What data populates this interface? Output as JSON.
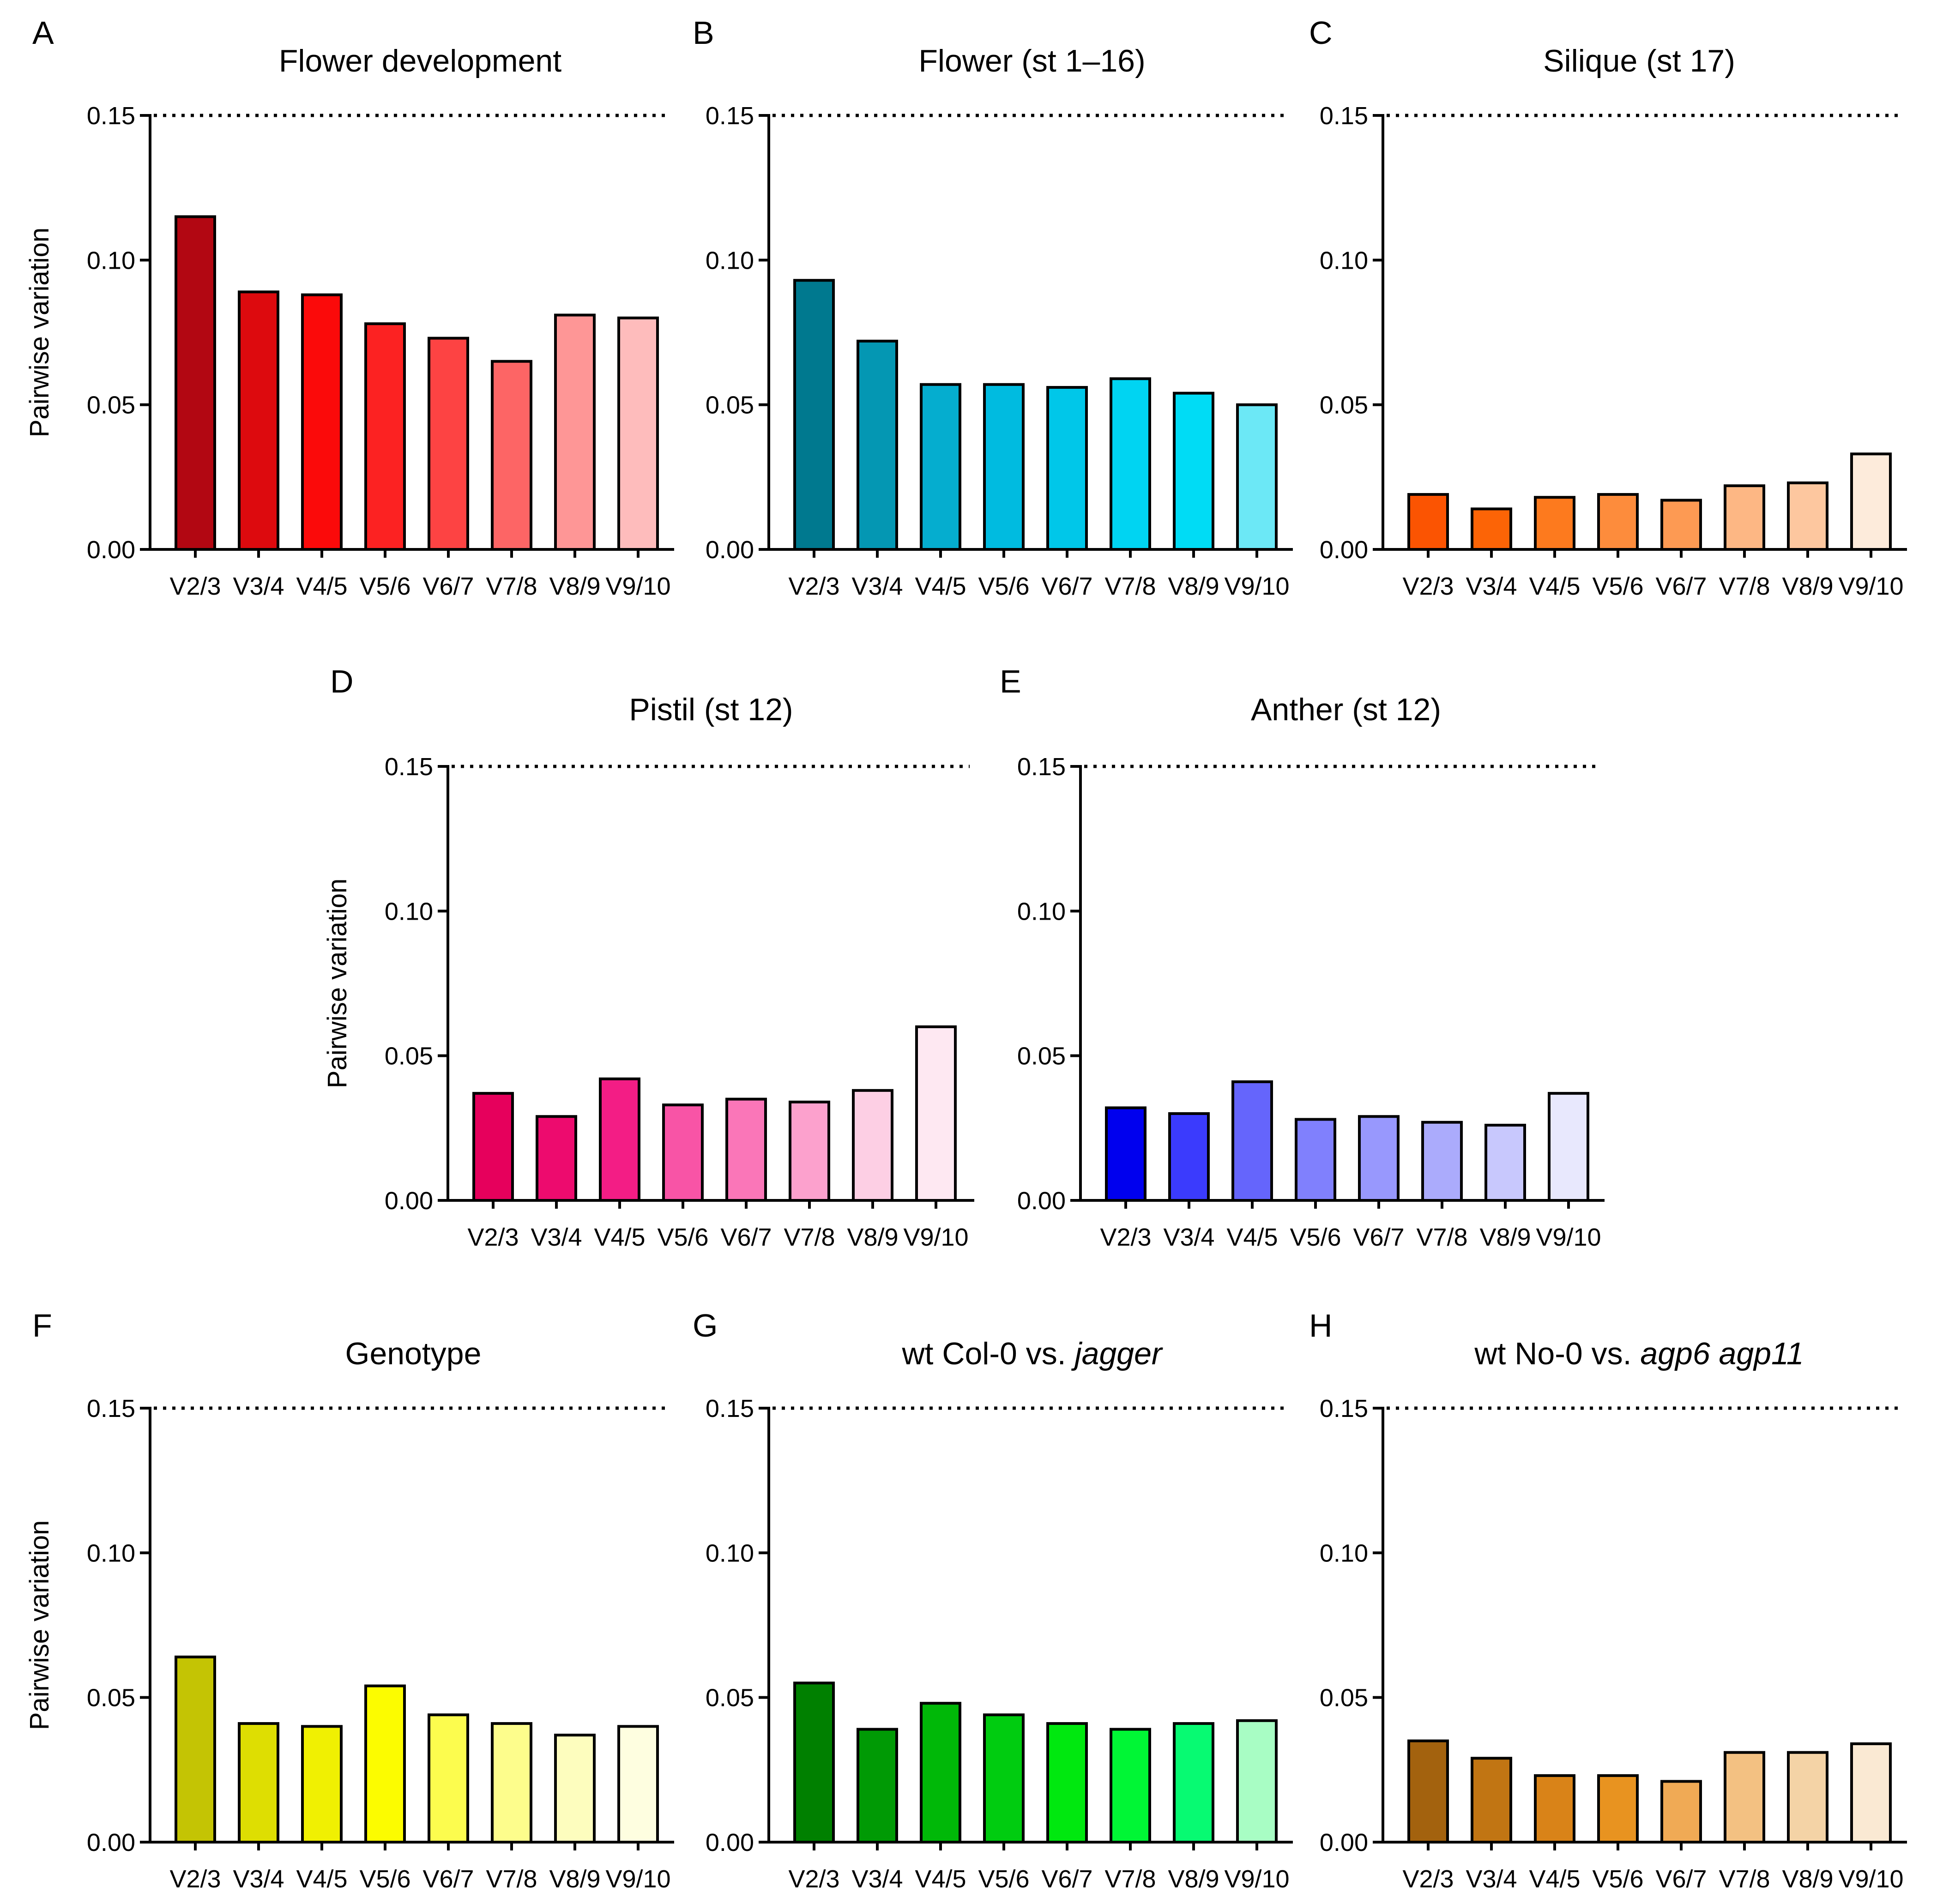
{
  "chart_data": [
    {
      "letter": "A",
      "title": "Flower development",
      "ylabel": "Pairwise variation",
      "type": "bar",
      "categories": [
        "V2/3",
        "V3/4",
        "V4/5",
        "V5/6",
        "V6/7",
        "V7/8",
        "V8/9",
        "V9/10"
      ],
      "values": [
        0.115,
        0.089,
        0.088,
        0.078,
        0.073,
        0.065,
        0.081,
        0.08
      ],
      "colors": [
        "#b20712",
        "#dd0a0e",
        "#fb0a0a",
        "#fc2222",
        "#fd4343",
        "#fd6565",
        "#fe9696",
        "#febcbc"
      ],
      "ylim": [
        0,
        0.15
      ],
      "yticks": [
        "0.00",
        "0.05",
        "0.10",
        "0.15"
      ],
      "threshold": 0.15
    },
    {
      "letter": "B",
      "title": "Flower (st 1–16)",
      "ylabel": "",
      "type": "bar",
      "categories": [
        "V2/3",
        "V3/4",
        "V4/5",
        "V5/6",
        "V6/7",
        "V7/8",
        "V8/9",
        "V9/10"
      ],
      "values": [
        0.093,
        0.072,
        0.057,
        0.057,
        0.056,
        0.059,
        0.054,
        0.05
      ],
      "colors": [
        "#00798f",
        "#0497b3",
        "#05adcf",
        "#00bbe0",
        "#00c7e9",
        "#00d4f2",
        "#00dcf5",
        "#6ce8f6"
      ],
      "ylim": [
        0,
        0.15
      ],
      "yticks": [
        "0.00",
        "0.05",
        "0.10",
        "0.15"
      ],
      "threshold": 0.15
    },
    {
      "letter": "C",
      "title": "Silique (st 17)",
      "ylabel": "",
      "type": "bar",
      "categories": [
        "V2/3",
        "V3/4",
        "V4/5",
        "V5/6",
        "V6/7",
        "V7/8",
        "V8/9",
        "V9/10"
      ],
      "values": [
        0.019,
        0.014,
        0.018,
        0.019,
        0.017,
        0.022,
        0.023,
        0.033
      ],
      "colors": [
        "#fb5402",
        "#fc6406",
        "#fd7a1e",
        "#fd8c3c",
        "#fd9a53",
        "#fdb784",
        "#fdc79f",
        "#fdebdb"
      ],
      "ylim": [
        0,
        0.15
      ],
      "yticks": [
        "0.00",
        "0.05",
        "0.10",
        "0.15"
      ],
      "threshold": 0.15
    },
    {
      "letter": "D",
      "title": "Pistil (st 12)",
      "ylabel": "Pairwise variation",
      "type": "bar",
      "categories": [
        "V2/3",
        "V3/4",
        "V4/5",
        "V5/6",
        "V6/7",
        "V7/8",
        "V8/9",
        "V9/10"
      ],
      "values": [
        0.037,
        0.029,
        0.042,
        0.033,
        0.035,
        0.034,
        0.038,
        0.06
      ],
      "colors": [
        "#e6005c",
        "#ed0b6e",
        "#f31d85",
        "#f854a6",
        "#fa76b8",
        "#fca1cd",
        "#fdcfe4",
        "#fee8f2"
      ],
      "ylim": [
        0,
        0.15
      ],
      "yticks": [
        "0.00",
        "0.05",
        "0.10",
        "0.15"
      ],
      "threshold": 0.15
    },
    {
      "letter": "E",
      "title": "Anther (st 12)",
      "ylabel": "",
      "type": "bar",
      "categories": [
        "V2/3",
        "V3/4",
        "V4/5",
        "V5/6",
        "V6/7",
        "V7/8",
        "V8/9",
        "V9/10"
      ],
      "values": [
        0.032,
        0.03,
        0.041,
        0.028,
        0.029,
        0.027,
        0.026,
        0.037
      ],
      "colors": [
        "#0000ee",
        "#3b3bfd",
        "#6565fc",
        "#8080fd",
        "#9898fd",
        "#ababfc",
        "#c8c8fd",
        "#e8e8fd"
      ],
      "ylim": [
        0,
        0.15
      ],
      "yticks": [
        "0.00",
        "0.05",
        "0.10",
        "0.15"
      ],
      "threshold": 0.15
    },
    {
      "letter": "F",
      "title": "Genotype",
      "ylabel": "Pairwise variation",
      "type": "bar",
      "categories": [
        "V2/3",
        "V3/4",
        "V4/5",
        "V5/6",
        "V6/7",
        "V7/8",
        "V8/9",
        "V9/10"
      ],
      "values": [
        0.064,
        0.041,
        0.04,
        0.054,
        0.044,
        0.041,
        0.037,
        0.04
      ],
      "colors": [
        "#c4c404",
        "#dede02",
        "#f0f002",
        "#fcfc00",
        "#fcfc4e",
        "#fdfd8c",
        "#fdfdbe",
        "#fefee0"
      ],
      "ylim": [
        0,
        0.15
      ],
      "yticks": [
        "0.00",
        "0.05",
        "0.10",
        "0.15"
      ],
      "threshold": 0.15
    },
    {
      "letter": "G",
      "title": "wt Col-0 vs. ",
      "title_italic": "jagger",
      "ylabel": "",
      "type": "bar",
      "categories": [
        "V2/3",
        "V3/4",
        "V4/5",
        "V5/6",
        "V6/7",
        "V7/8",
        "V8/9",
        "V9/10"
      ],
      "values": [
        0.055,
        0.039,
        0.048,
        0.044,
        0.041,
        0.039,
        0.041,
        0.042
      ],
      "colors": [
        "#008000",
        "#009a05",
        "#00b808",
        "#00cc10",
        "#00e80f",
        "#00f635",
        "#07fa72",
        "#a8fdc4"
      ],
      "ylim": [
        0,
        0.15
      ],
      "yticks": [
        "0.00",
        "0.05",
        "0.10",
        "0.15"
      ],
      "threshold": 0.15
    },
    {
      "letter": "H",
      "title": "wt No-0 vs. ",
      "title_italic": "agp6 agp11",
      "ylabel": "",
      "type": "bar",
      "categories": [
        "V2/3",
        "V3/4",
        "V4/5",
        "V5/6",
        "V6/7",
        "V7/8",
        "V8/9",
        "V9/10"
      ],
      "values": [
        0.035,
        0.029,
        0.023,
        0.023,
        0.021,
        0.031,
        0.031,
        0.034
      ],
      "colors": [
        "#a3620e",
        "#c17513",
        "#d98318",
        "#e89320",
        "#f0aa55",
        "#f3c182",
        "#f4d3a6",
        "#fae9d3"
      ],
      "ylim": [
        0,
        0.15
      ],
      "yticks": [
        "0.00",
        "0.05",
        "0.10",
        "0.15"
      ],
      "threshold": 0.15
    }
  ]
}
